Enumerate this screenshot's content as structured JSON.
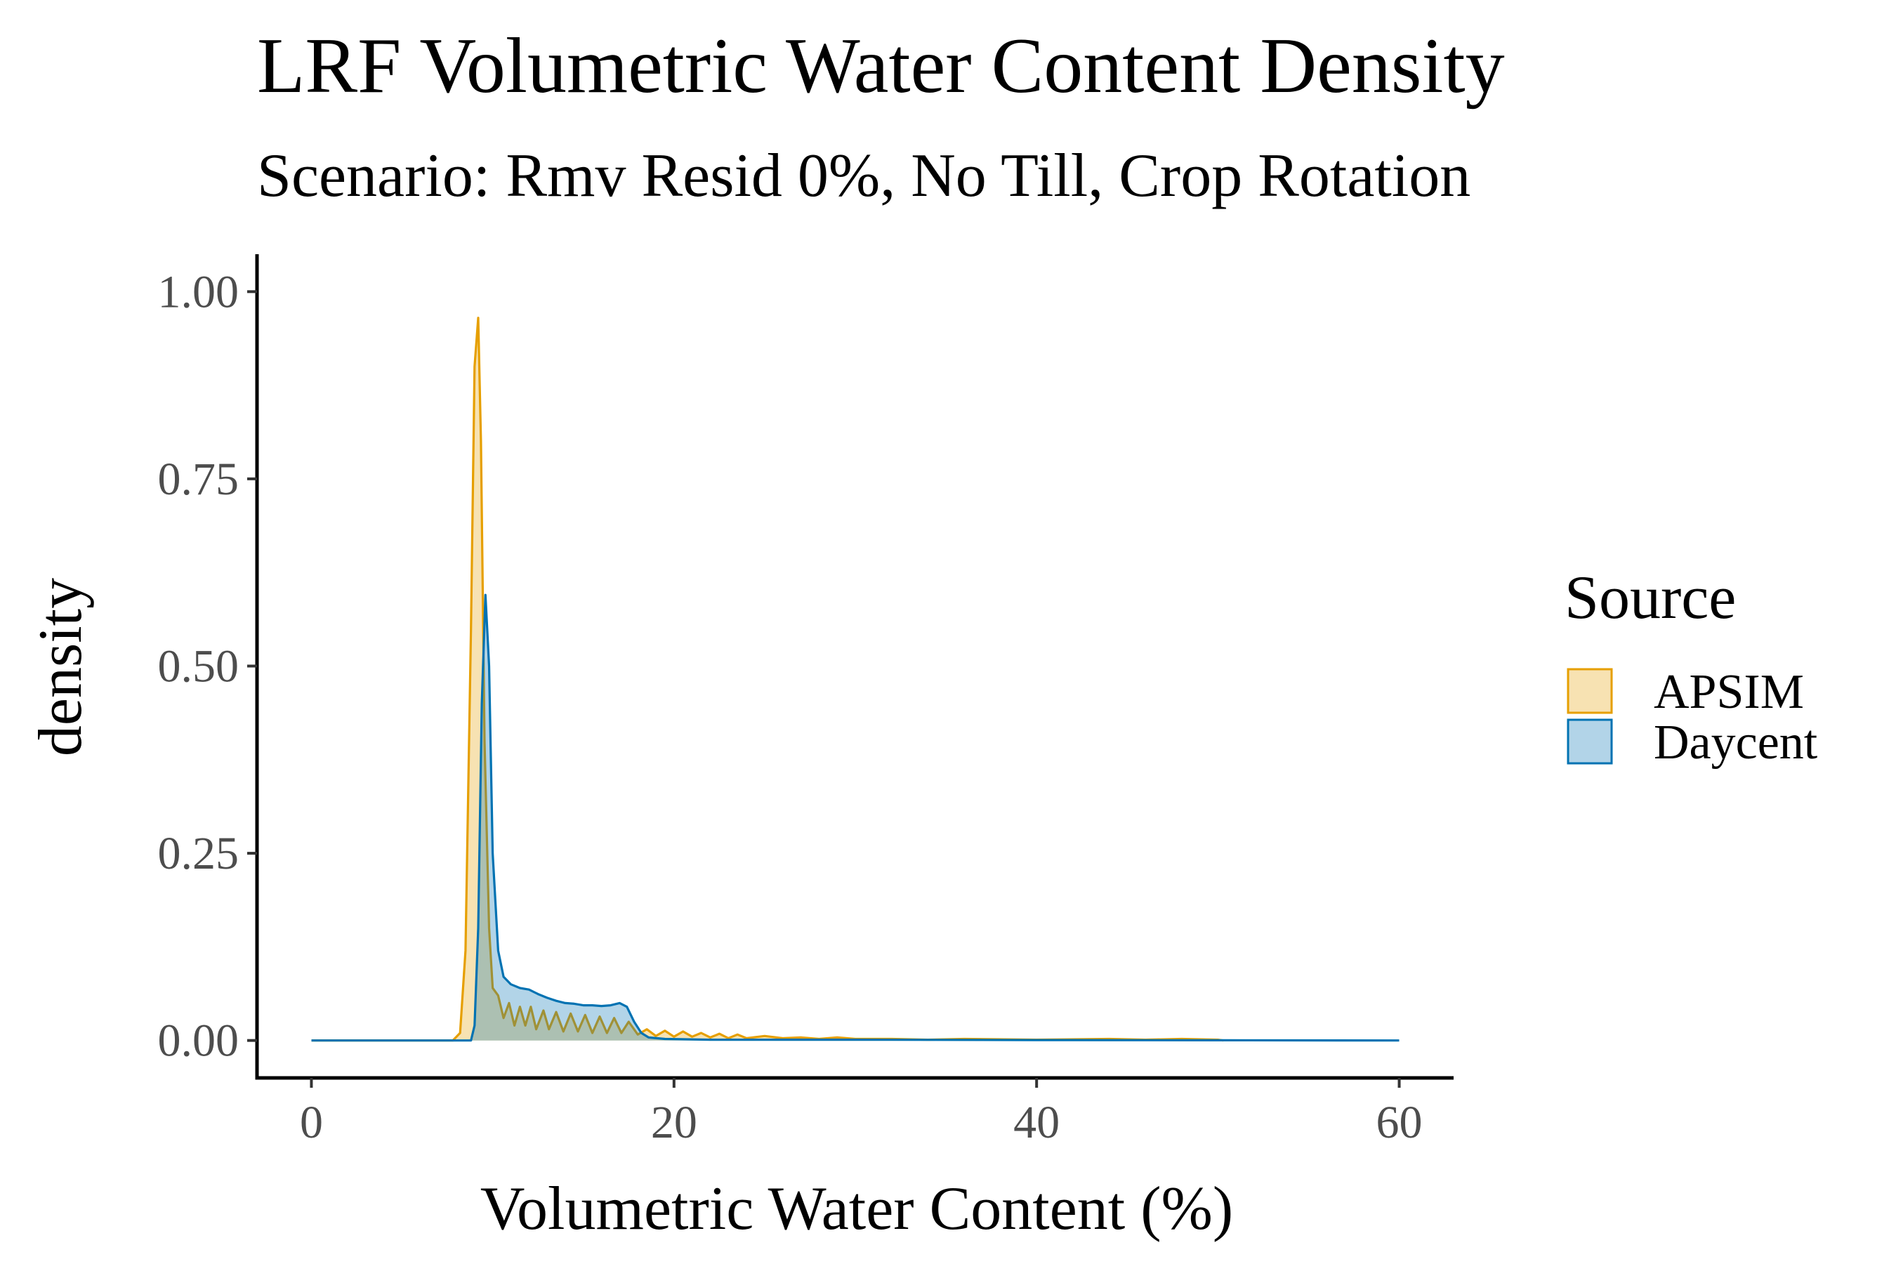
{
  "chart_data": {
    "type": "area",
    "title": "LRF Volumetric Water Content Density",
    "subtitle": "Scenario: Rmv Resid 0%, No Till, Crop Rotation",
    "xlabel": "Volumetric Water Content (%)",
    "ylabel": "density",
    "xlim": [
      -3,
      63
    ],
    "ylim": [
      -0.05,
      1.05
    ],
    "xticks": [
      0,
      20,
      40,
      60
    ],
    "yticks": [
      0.0,
      0.25,
      0.5,
      0.75,
      1.0
    ],
    "xtick_labels": [
      "0",
      "20",
      "40",
      "60"
    ],
    "ytick_labels": [
      "0.00",
      "0.25",
      "0.50",
      "0.75",
      "1.00"
    ],
    "grid": false,
    "legend": {
      "title": "Source",
      "position": "right"
    },
    "series": [
      {
        "name": "APSIM",
        "line_color": "#E69F00",
        "fill_color": "#E69F00",
        "fill_opacity": 0.3,
        "points": [
          [
            0,
            0
          ],
          [
            7.8,
            0
          ],
          [
            8.2,
            0.01
          ],
          [
            8.5,
            0.12
          ],
          [
            8.8,
            0.55
          ],
          [
            9.0,
            0.9
          ],
          [
            9.2,
            0.965
          ],
          [
            9.35,
            0.8
          ],
          [
            9.55,
            0.4
          ],
          [
            9.8,
            0.15
          ],
          [
            10.0,
            0.07
          ],
          [
            10.3,
            0.06
          ],
          [
            10.6,
            0.03
          ],
          [
            10.9,
            0.05
          ],
          [
            11.2,
            0.02
          ],
          [
            11.5,
            0.045
          ],
          [
            11.8,
            0.02
          ],
          [
            12.1,
            0.045
          ],
          [
            12.4,
            0.015
          ],
          [
            12.8,
            0.04
          ],
          [
            13.1,
            0.015
          ],
          [
            13.5,
            0.038
          ],
          [
            13.9,
            0.012
          ],
          [
            14.3,
            0.036
          ],
          [
            14.7,
            0.012
          ],
          [
            15.1,
            0.034
          ],
          [
            15.5,
            0.01
          ],
          [
            15.9,
            0.032
          ],
          [
            16.3,
            0.01
          ],
          [
            16.7,
            0.03
          ],
          [
            17.1,
            0.01
          ],
          [
            17.5,
            0.025
          ],
          [
            18.0,
            0.008
          ],
          [
            18.5,
            0.015
          ],
          [
            19.0,
            0.006
          ],
          [
            19.5,
            0.013
          ],
          [
            20.0,
            0.005
          ],
          [
            20.5,
            0.012
          ],
          [
            21.0,
            0.005
          ],
          [
            21.5,
            0.01
          ],
          [
            22.0,
            0.004
          ],
          [
            22.5,
            0.009
          ],
          [
            23.0,
            0.003
          ],
          [
            23.5,
            0.008
          ],
          [
            24.0,
            0.003
          ],
          [
            25.0,
            0.006
          ],
          [
            26.0,
            0.003
          ],
          [
            27.0,
            0.004
          ],
          [
            28.0,
            0.002
          ],
          [
            29.0,
            0.004
          ],
          [
            30.0,
            0.002
          ],
          [
            32.0,
            0.002
          ],
          [
            34.0,
            0.001
          ],
          [
            36.0,
            0.002
          ],
          [
            40.0,
            0.001
          ],
          [
            44.0,
            0.002
          ],
          [
            46.0,
            0.001
          ],
          [
            48.0,
            0.002
          ],
          [
            50.0,
            0.001
          ],
          [
            50.3,
            0
          ]
        ]
      },
      {
        "name": "Daycent",
        "line_color": "#0072B2",
        "fill_color": "#0072B2",
        "fill_opacity": 0.3,
        "points": [
          [
            0,
            0
          ],
          [
            8.8,
            0
          ],
          [
            9.0,
            0.02
          ],
          [
            9.2,
            0.15
          ],
          [
            9.4,
            0.45
          ],
          [
            9.6,
            0.595
          ],
          [
            9.8,
            0.5
          ],
          [
            10.0,
            0.25
          ],
          [
            10.3,
            0.12
          ],
          [
            10.6,
            0.085
          ],
          [
            11.0,
            0.075
          ],
          [
            11.5,
            0.07
          ],
          [
            12.0,
            0.068
          ],
          [
            12.5,
            0.062
          ],
          [
            13.0,
            0.057
          ],
          [
            13.5,
            0.053
          ],
          [
            14.0,
            0.05
          ],
          [
            14.5,
            0.049
          ],
          [
            15.0,
            0.047
          ],
          [
            15.5,
            0.047
          ],
          [
            16.0,
            0.046
          ],
          [
            16.5,
            0.047
          ],
          [
            17.0,
            0.05
          ],
          [
            17.4,
            0.045
          ],
          [
            17.8,
            0.025
          ],
          [
            18.2,
            0.01
          ],
          [
            18.6,
            0.004
          ],
          [
            19.5,
            0.002
          ],
          [
            22.0,
            0.001
          ],
          [
            30.0,
            0.001
          ],
          [
            40.0,
            0.0005
          ],
          [
            50.0,
            0.0003
          ],
          [
            60.0,
            0
          ]
        ]
      }
    ]
  }
}
